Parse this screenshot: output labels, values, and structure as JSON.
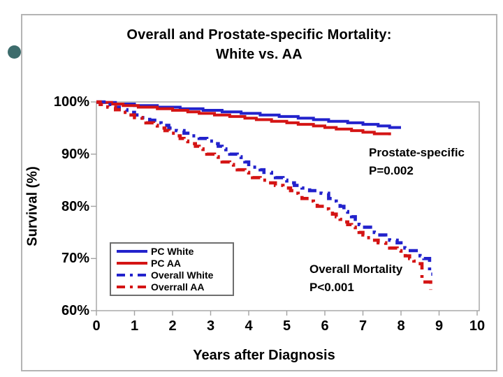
{
  "slide": {
    "bullet_color": "#3d6c6c"
  },
  "chart_data": {
    "type": "line",
    "title": "Overall and Prostate-specific Mortality:",
    "title_line2": "White vs. AA",
    "xlabel": "Years after Diagnosis",
    "ylabel": "Survival (%)",
    "xlim": [
      0,
      10
    ],
    "ylim": [
      60,
      100
    ],
    "grid": false,
    "legend_position": "lower-left",
    "x_ticks": [
      "0",
      "1",
      "2",
      "3",
      "4",
      "5",
      "6",
      "7",
      "8",
      "9",
      "10"
    ],
    "y_ticks": [
      {
        "label": "100%",
        "value": 100
      },
      {
        "label": "90%",
        "value": 90
      },
      {
        "label": "80%",
        "value": 80
      },
      {
        "label": "70%",
        "value": 70
      },
      {
        "label": "60%",
        "value": 60
      }
    ],
    "series": [
      {
        "name": "PC White",
        "color": "#2222cc",
        "style": "solid",
        "points": [
          [
            0,
            100
          ],
          [
            1,
            99.4
          ],
          [
            2,
            98.9
          ],
          [
            3,
            98.4
          ],
          [
            4,
            97.8
          ],
          [
            5,
            97.2
          ],
          [
            6,
            96.5
          ],
          [
            7,
            95.8
          ],
          [
            8,
            95.0
          ]
        ]
      },
      {
        "name": "PC AA",
        "color": "#d41414",
        "style": "solid",
        "points": [
          [
            0,
            100
          ],
          [
            1,
            99.2
          ],
          [
            2,
            98.5
          ],
          [
            3,
            97.7
          ],
          [
            4,
            96.9
          ],
          [
            5,
            96.1
          ],
          [
            6,
            95.2
          ],
          [
            7,
            94.3
          ],
          [
            7.5,
            93.8
          ],
          [
            7.7,
            93.7
          ]
        ]
      },
      {
        "name": "Overall White",
        "color": "#2222cc",
        "style": "dashed",
        "points": [
          [
            0,
            100
          ],
          [
            1,
            97.7
          ],
          [
            2,
            94.9
          ],
          [
            3,
            92.4
          ],
          [
            4,
            88.0
          ],
          [
            5,
            84.6
          ],
          [
            6,
            82.3
          ],
          [
            7,
            76.1
          ],
          [
            8,
            72.7
          ],
          [
            8.6,
            69.8
          ],
          [
            8.75,
            69.8
          ],
          [
            8.75,
            67.0
          ],
          [
            8.82,
            67.0
          ]
        ]
      },
      {
        "name": "Overrall AA",
        "color": "#d41414",
        "style": "dashed",
        "points": [
          [
            0,
            100
          ],
          [
            1,
            97.1
          ],
          [
            2,
            93.8
          ],
          [
            3,
            89.8
          ],
          [
            4,
            86.0
          ],
          [
            5,
            83.3
          ],
          [
            6,
            79.4
          ],
          [
            7,
            74.4
          ],
          [
            8,
            71.1
          ],
          [
            8.45,
            69.0
          ],
          [
            8.55,
            69.0
          ],
          [
            8.55,
            65.4
          ],
          [
            8.7,
            65.4
          ],
          [
            8.78,
            64.0
          ]
        ]
      }
    ],
    "annotations": [
      {
        "lines": [
          "Prostate-specific",
          "P=0.002"
        ]
      },
      {
        "lines": [
          "Overall Mortality",
          "P<0.001"
        ]
      }
    ]
  }
}
